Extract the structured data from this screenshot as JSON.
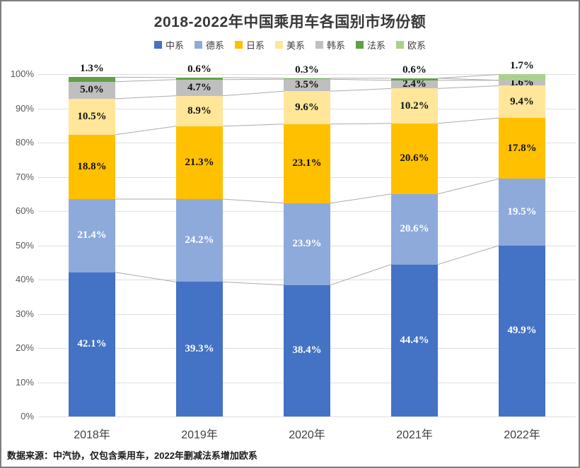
{
  "chart_data": {
    "type": "bar",
    "stacked": true,
    "title": "2018-2022年中国乘用车各国别市场份额",
    "source_note": "数据来源：中汽协，仅包含乘用车，2022年删减法系增加欧系",
    "categories": [
      "2018年",
      "2019年",
      "2020年",
      "2021年",
      "2022年"
    ],
    "series": [
      {
        "name": "中系",
        "color": "#4472C4",
        "label_color": "#ffffff",
        "values": [
          42.1,
          39.3,
          38.4,
          44.4,
          49.9
        ]
      },
      {
        "name": "德系",
        "color": "#8EAADB",
        "label_color": "#ffffff",
        "values": [
          21.4,
          24.2,
          23.9,
          20.6,
          19.5
        ]
      },
      {
        "name": "日系",
        "color": "#FFC000",
        "label_color": "#111111",
        "values": [
          18.8,
          21.3,
          23.1,
          20.6,
          17.8
        ]
      },
      {
        "name": "美系",
        "color": "#FFE699",
        "label_color": "#111111",
        "values": [
          10.5,
          8.9,
          9.6,
          10.2,
          9.4
        ]
      },
      {
        "name": "韩系",
        "color": "#BFBFBF",
        "label_color": "#111111",
        "values": [
          5.0,
          4.7,
          3.5,
          2.4,
          1.6
        ]
      },
      {
        "name": "法系",
        "color": "#62A045",
        "label_color": "#111111",
        "values": [
          1.3,
          0.6,
          0.3,
          0.6,
          0
        ]
      },
      {
        "name": "欧系",
        "color": "#A9D18E",
        "label_color": "#111111",
        "values": [
          0,
          0,
          0,
          0,
          1.7
        ]
      }
    ],
    "y_ticks": [
      "0%",
      "10%",
      "20%",
      "30%",
      "40%",
      "50%",
      "60%",
      "70%",
      "80%",
      "90%",
      "100%"
    ],
    "ylim": [
      0,
      100
    ],
    "grid": true,
    "legend_position": "top",
    "label_suffix": "%",
    "gridline_color": "#dedede",
    "connector_color": "#ababab"
  }
}
